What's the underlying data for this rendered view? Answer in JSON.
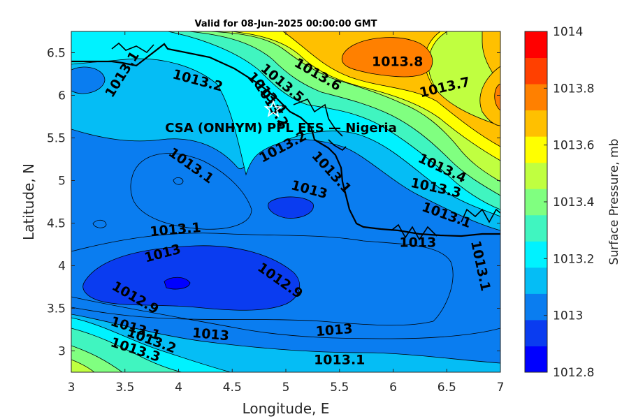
{
  "title": "Valid for 08-Jun-2025 00:00:00 GMT",
  "colors": {
    "levels": [
      "#0000ff",
      "#0a3cf0",
      "#0a7df0",
      "#05bdf5",
      "#00f2ff",
      "#40f5c0",
      "#80ff80",
      "#c0ff40",
      "#ffff00",
      "#ffc000",
      "#ff8000",
      "#ff4000",
      "#ff0000"
    ]
  },
  "chart_data": {
    "type": "contour",
    "xlabel": "Longitude, E",
    "ylabel": "Latitude, N",
    "xlim": [
      3,
      7
    ],
    "ylim": [
      2.75,
      6.75
    ],
    "xticks": [
      "3",
      "3.5",
      "4",
      "4.5",
      "5",
      "5.5",
      "6",
      "6.5",
      "7"
    ],
    "yticks": [
      "3",
      "3.5",
      "4",
      "4.5",
      "5",
      "5.5",
      "6",
      "6.5"
    ],
    "colorbar": {
      "label": "Surface Pressure, mb",
      "range": [
        1012.8,
        1014
      ],
      "ticks": [
        "1012.8",
        "1013",
        "1013.2",
        "1013.4",
        "1013.6",
        "1013.8",
        "1014"
      ]
    },
    "annotation": {
      "text": "CSA (ONHYM) PPL EES — Nigeria",
      "lon": 4.82,
      "lat": 5.55
    },
    "contour_labels": [
      {
        "text": "1013.1",
        "lon": 3.47,
        "lat": 6.25,
        "angle": -58
      },
      {
        "text": "1013.2",
        "lon": 4.18,
        "lat": 6.18,
        "angle": 15
      },
      {
        "text": "1013.6",
        "lon": 5.3,
        "lat": 6.25,
        "angle": 30
      },
      {
        "text": "1013.5",
        "lon": 4.97,
        "lat": 6.15,
        "angle": 40
      },
      {
        "text": "1013.4",
        "lon": 4.83,
        "lat": 6.03,
        "angle": 48
      },
      {
        "text": "1013.2",
        "lon": 4.87,
        "lat": 5.9,
        "angle": 58
      },
      {
        "text": "1013.8",
        "lon": 6.04,
        "lat": 6.4,
        "angle": 0
      },
      {
        "text": "1013.7",
        "lon": 6.48,
        "lat": 6.1,
        "angle": -13
      },
      {
        "text": "1013.2",
        "lon": 4.97,
        "lat": 5.4,
        "angle": -28
      },
      {
        "text": "1013.1",
        "lon": 4.12,
        "lat": 5.18,
        "angle": 35
      },
      {
        "text": "1013.1",
        "lon": 5.43,
        "lat": 5.1,
        "angle": 48
      },
      {
        "text": "1013.4",
        "lon": 6.46,
        "lat": 5.15,
        "angle": 25
      },
      {
        "text": "1013.3",
        "lon": 6.4,
        "lat": 4.92,
        "angle": 12
      },
      {
        "text": "1013",
        "lon": 5.22,
        "lat": 4.9,
        "angle": 15
      },
      {
        "text": "1013.1",
        "lon": 6.5,
        "lat": 4.6,
        "angle": 20
      },
      {
        "text": "1013.1",
        "lon": 3.97,
        "lat": 4.43,
        "angle": -5
      },
      {
        "text": "1013",
        "lon": 6.23,
        "lat": 4.28,
        "angle": 0
      },
      {
        "text": "1013",
        "lon": 3.85,
        "lat": 4.15,
        "angle": -15
      },
      {
        "text": "1013.1",
        "lon": 6.82,
        "lat": 4.0,
        "angle": 78
      },
      {
        "text": "1012.9",
        "lon": 4.95,
        "lat": 3.83,
        "angle": 35
      },
      {
        "text": "1012.9",
        "lon": 3.6,
        "lat": 3.63,
        "angle": 30
      },
      {
        "text": "1013.1",
        "lon": 3.6,
        "lat": 3.27,
        "angle": 17
      },
      {
        "text": "1013.2",
        "lon": 3.75,
        "lat": 3.13,
        "angle": 20
      },
      {
        "text": "1013",
        "lon": 4.3,
        "lat": 3.2,
        "angle": 5
      },
      {
        "text": "1013",
        "lon": 5.45,
        "lat": 3.25,
        "angle": -5
      },
      {
        "text": "1013.3",
        "lon": 3.6,
        "lat": 3.02,
        "angle": 18
      },
      {
        "text": "1013.1",
        "lon": 5.5,
        "lat": 2.9,
        "angle": 0
      }
    ]
  }
}
